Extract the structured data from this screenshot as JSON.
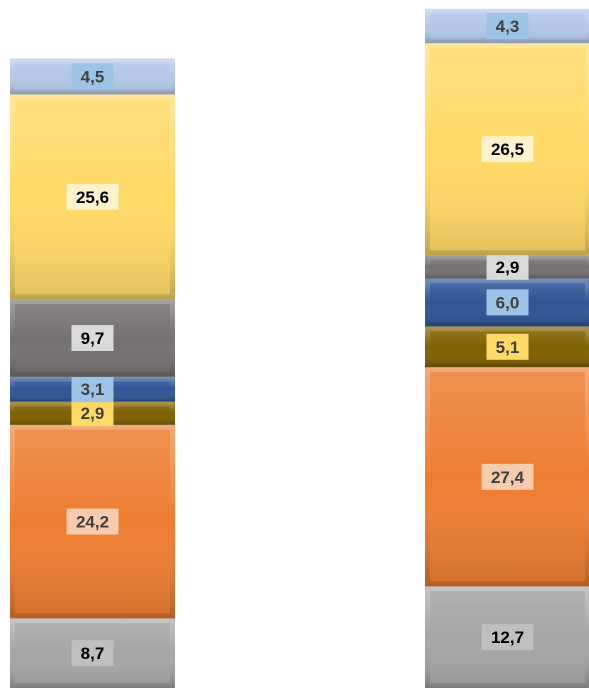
{
  "chart_data": {
    "type": "bar",
    "stacked": true,
    "orientation": "vertical",
    "categories": [
      "",
      ""
    ],
    "series": [
      {
        "values": [
          8.7,
          12.7
        ],
        "color": "#a5a5a5",
        "label_bg": "#bfbfbf",
        "label_color": "#000000"
      },
      {
        "values": [
          24.2,
          27.4
        ],
        "color": "#ed7d31",
        "label_bg": "#f8cbad",
        "label_color": "#404040"
      },
      {
        "values": [
          2.9,
          5.1
        ],
        "color": "#7f6000",
        "label_bg": "#ffd966",
        "label_color": "#404040"
      },
      {
        "values": [
          3.1,
          6.0
        ],
        "color": "#2f5597",
        "label_bg": "#9dc3e6",
        "label_color": "#404040"
      },
      {
        "values": [
          9.7,
          2.9
        ],
        "color": "#767171",
        "label_bg": "#d9d9d9",
        "label_color": "#000000"
      },
      {
        "values": [
          25.6,
          26.5
        ],
        "color": "#ffd966",
        "label_bg": "#fff2cc",
        "label_color": "#000000"
      },
      {
        "values": [
          4.5,
          4.3
        ],
        "color": "#b4c7e7",
        "label_bg": "#9dc3e6",
        "label_color": "#404040"
      }
    ],
    "data_labels": [
      [
        "8,7",
        "24,2",
        "2,9",
        "3,1",
        "9,7",
        "25,6",
        "4,5"
      ],
      [
        "12,7",
        "27,4",
        "5,1",
        "6,0",
        "2,9",
        "26,5",
        "4,3"
      ]
    ],
    "title": "",
    "xlabel": "",
    "ylabel": "",
    "legend": "none",
    "grid": false
  }
}
